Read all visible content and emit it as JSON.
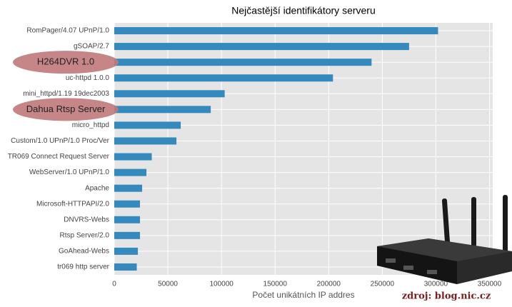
{
  "chart_data": {
    "type": "hbar",
    "title": "Nejčastější identifikátory serveru",
    "categories": [
      "RomPager/4.07 UPnP/1.0",
      "gSOAP/2.7",
      "H264DVR 1.0",
      "uc-httpd 1.0.0",
      "mini_httpd/1.19 19dec2003",
      "Dahua Rtsp Server",
      "micro_httpd",
      "Custom/1.0 UPnP/1.0 Proc/Ver",
      "TR069 Connect Request Server",
      "WebServer/1.0 UPnP/1.0",
      "Apache",
      "Microsoft-HTTPAPI/2.0",
      "DNVRS-Webs",
      "Rtsp Server/2.0",
      "GoAhead-Webs",
      "tr069 http server"
    ],
    "values": [
      302000,
      275000,
      240000,
      204000,
      103000,
      90000,
      62000,
      58000,
      35000,
      30000,
      26000,
      24000,
      24000,
      24000,
      22000,
      21000
    ],
    "color": "#348abd",
    "xlim": [
      0,
      353000
    ],
    "xticks": [
      0,
      50000,
      100000,
      150000,
      200000,
      250000,
      300000,
      350000
    ],
    "xlabel": "Počet unikátních IP addres",
    "grid": true,
    "highlighted": [
      2,
      5
    ],
    "highlight_color": "#c0787a",
    "source": "zdroj: blog.nic.cz"
  }
}
